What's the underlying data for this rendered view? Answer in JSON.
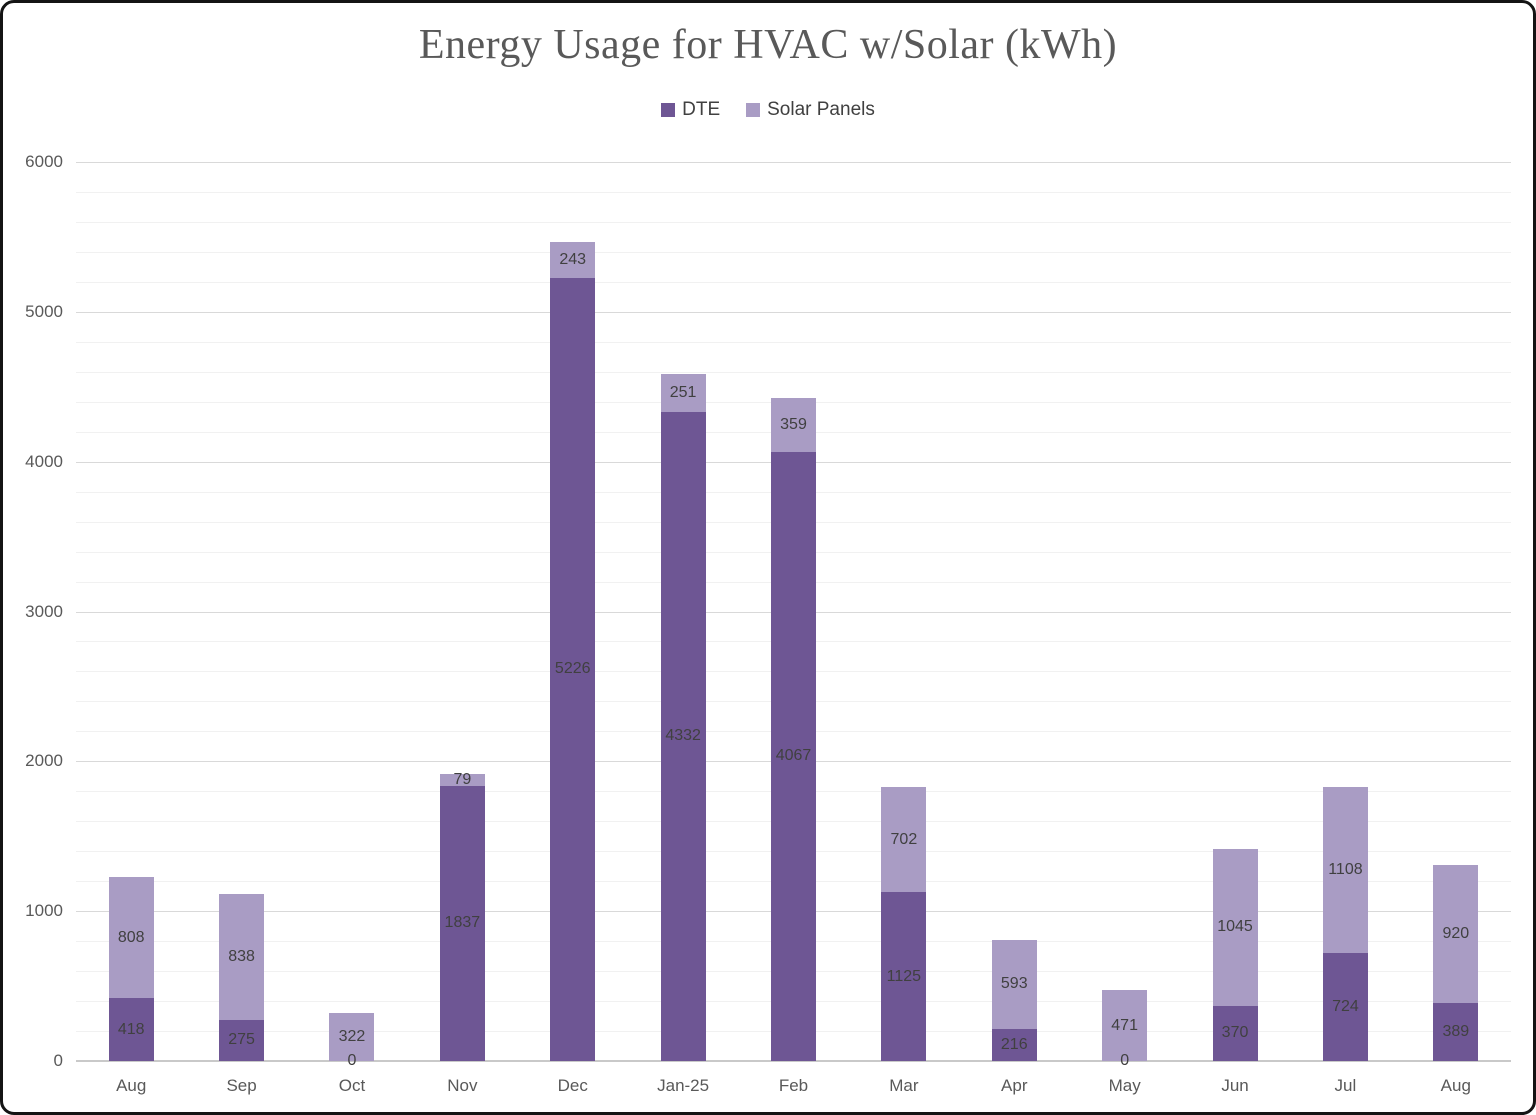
{
  "chart_data": {
    "type": "bar",
    "stacked": true,
    "title": "Energy Usage for HVAC w/Solar (kWh)",
    "categories": [
      "Aug",
      "Sep",
      "Oct",
      "Nov",
      "Dec",
      "Jan-25",
      "Feb",
      "Mar",
      "Apr",
      "May",
      "Jun",
      "Jul",
      "Aug"
    ],
    "series": [
      {
        "name": "DTE",
        "color": "#6E5694",
        "values": [
          418,
          275,
          0,
          1837,
          5226,
          4332,
          4067,
          1125,
          216,
          0,
          370,
          724,
          389
        ]
      },
      {
        "name": "Solar Panels",
        "color": "#A99CC4",
        "values": [
          808,
          838,
          322,
          79,
          243,
          251,
          359,
          702,
          593,
          471,
          1045,
          1108,
          920
        ]
      }
    ],
    "ylim": [
      0,
      6000
    ],
    "y_major_unit": 1000,
    "y_minor_unit": 200,
    "y_tick_labels": [
      "0",
      "1000",
      "2000",
      "3000",
      "4000",
      "5000",
      "6000"
    ],
    "grid": true,
    "legend_position": "top",
    "data_labels": true
  },
  "style": {
    "title_color": "#595959",
    "axis_label_color": "#595959",
    "data_label_color": "#404040",
    "major_gridline_color": "#d9d9d9",
    "minor_gridline_color": "#f1f1f1",
    "baseline_color": "#c9c9c9",
    "background": "#ffffff",
    "frame_border": "#141414"
  }
}
